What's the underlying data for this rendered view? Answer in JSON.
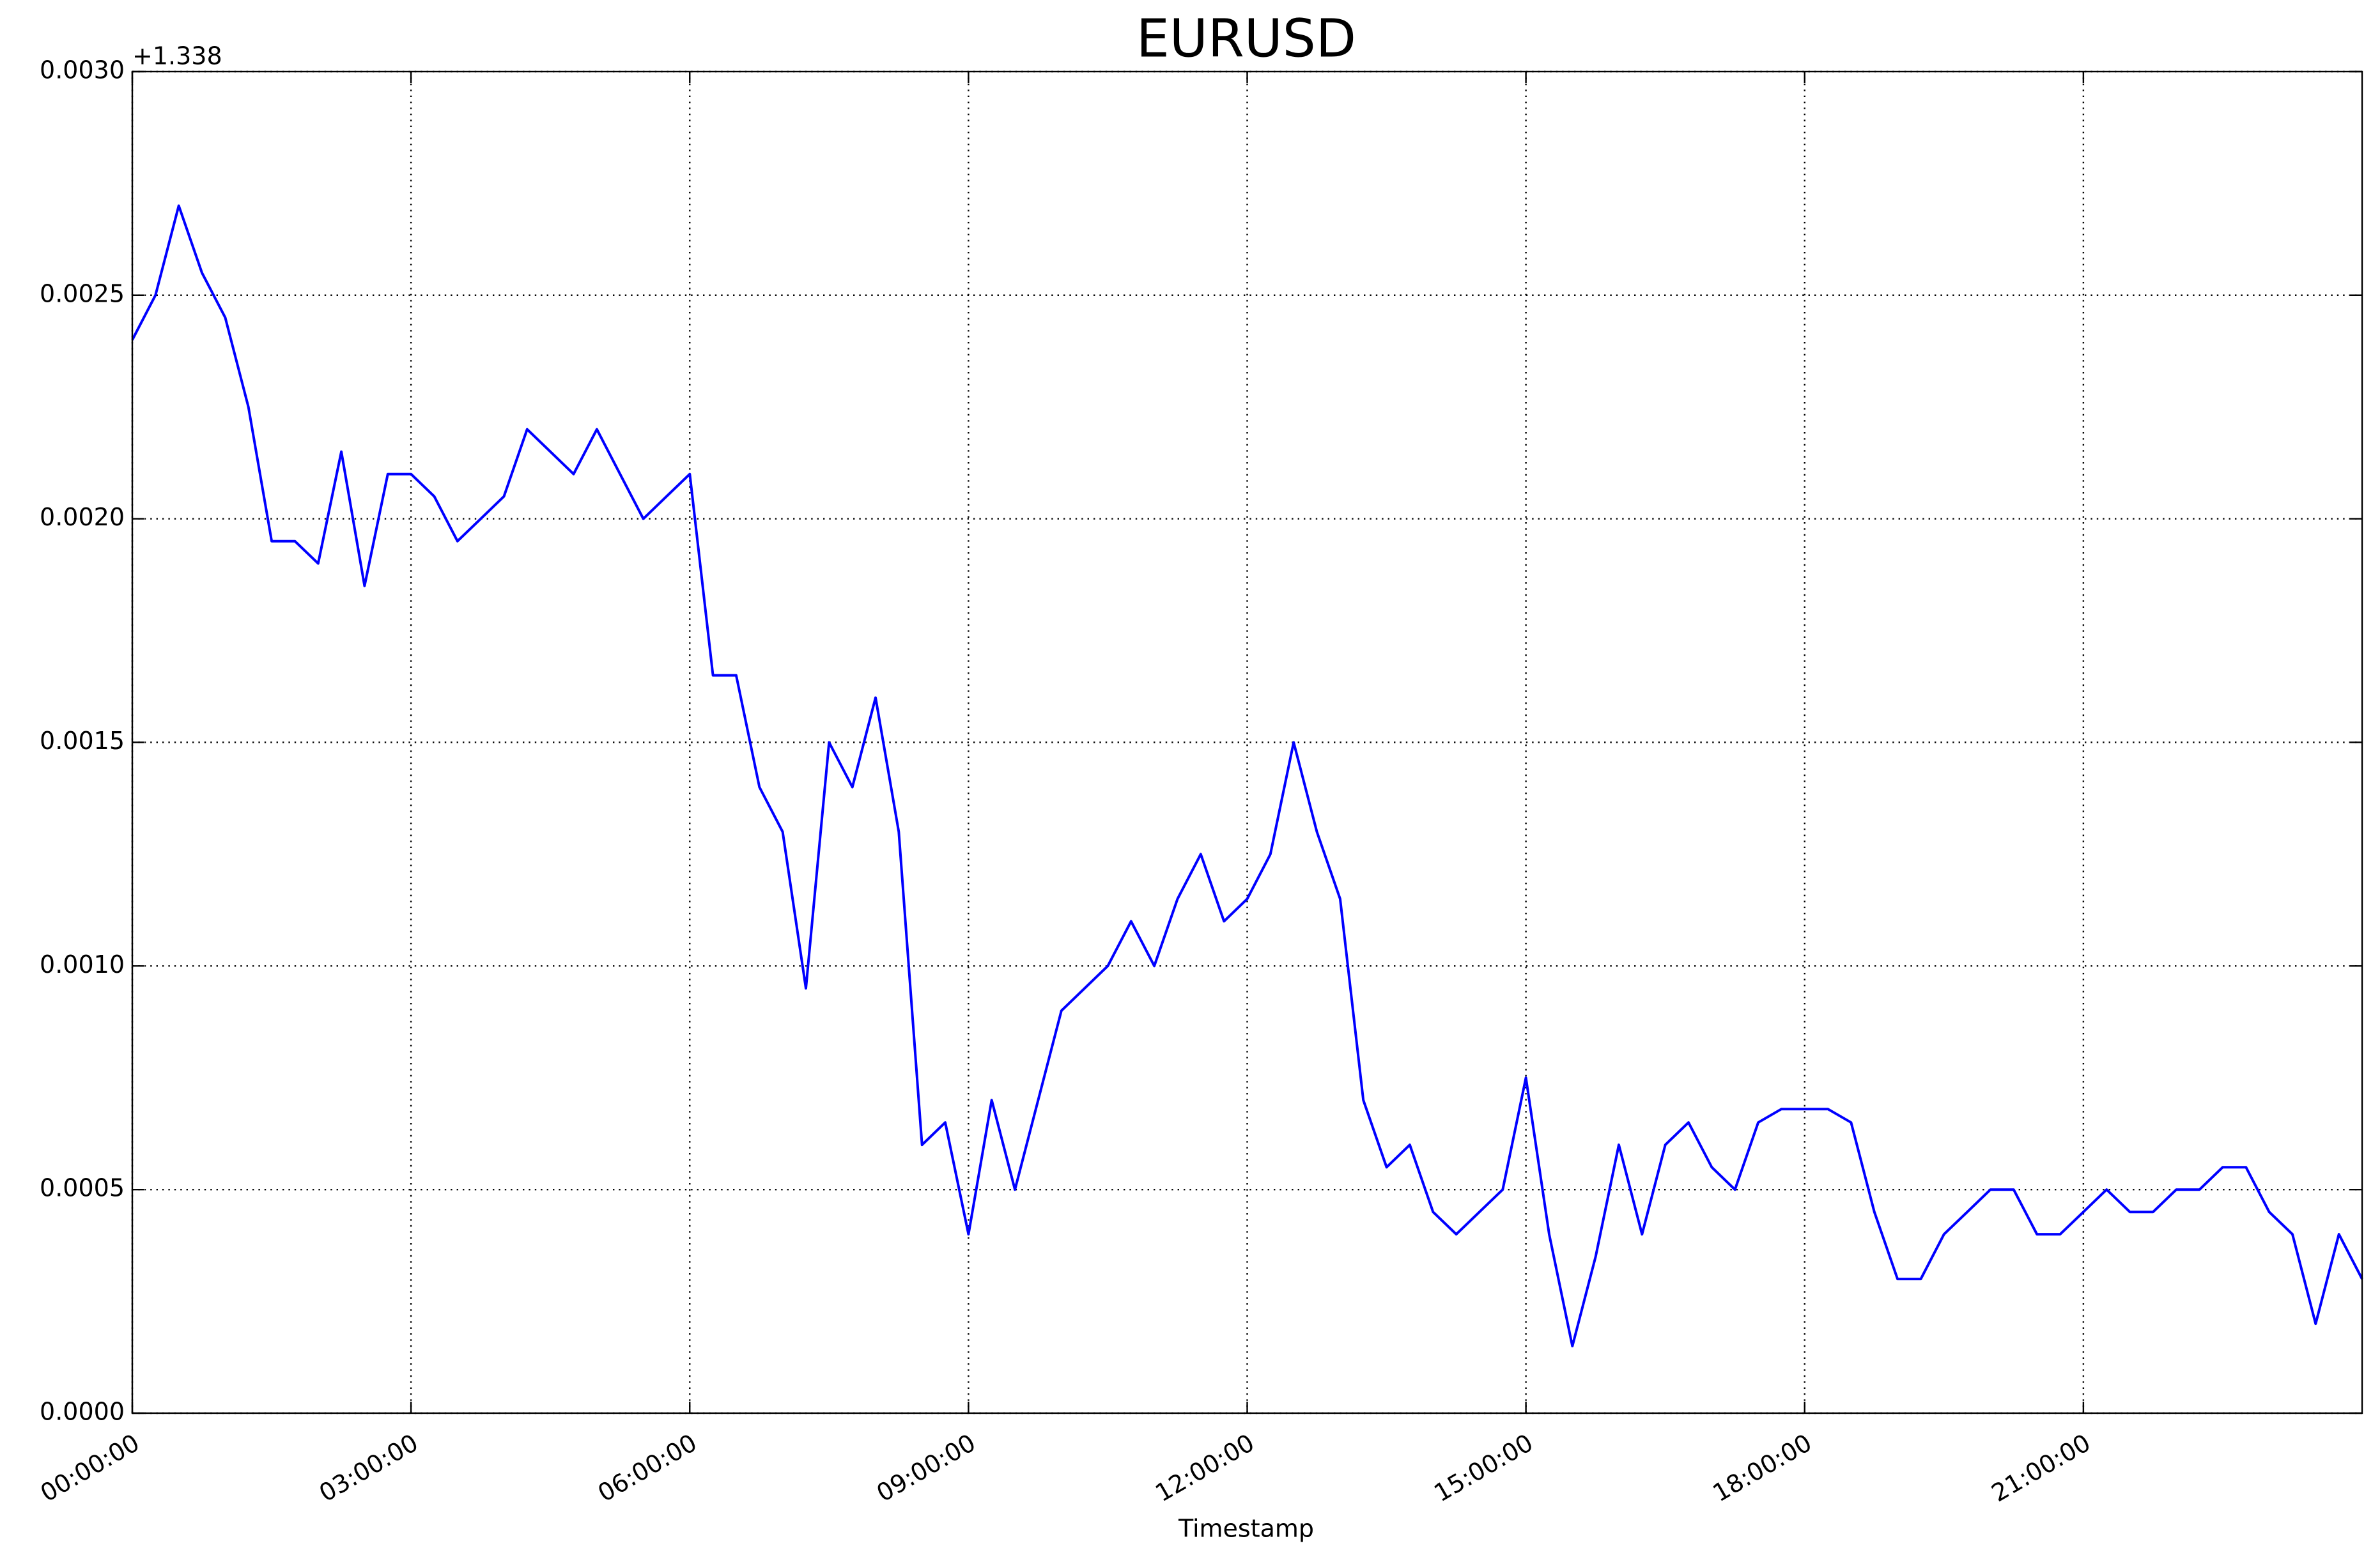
{
  "chart_data": {
    "type": "line",
    "title": "EURUSD",
    "xlabel": "Timestamp",
    "y_offset": "+1.338",
    "color": "#0000ff",
    "grid": true,
    "x": [
      0,
      0.25,
      0.5,
      0.75,
      1,
      1.25,
      1.5,
      1.75,
      2,
      2.25,
      2.5,
      2.75,
      3,
      3.25,
      3.5,
      3.75,
      4,
      4.25,
      4.5,
      4.75,
      5,
      5.25,
      5.5,
      5.75,
      6,
      6.25,
      6.5,
      6.75,
      7,
      7.25,
      7.5,
      7.75,
      8,
      8.25,
      8.5,
      8.75,
      9,
      9.25,
      9.5,
      9.75,
      10,
      10.25,
      10.5,
      10.75,
      11,
      11.25,
      11.5,
      11.75,
      12,
      12.25,
      12.5,
      12.75,
      13,
      13.25,
      13.5,
      13.75,
      14,
      14.25,
      14.5,
      14.75,
      15,
      15.25,
      15.5,
      15.75,
      16,
      16.25,
      16.5,
      16.75,
      17,
      17.25,
      17.5,
      17.75,
      18,
      18.25,
      18.5,
      18.75,
      19,
      19.25,
      19.5,
      19.75,
      20,
      20.25,
      20.5,
      20.75,
      21,
      21.25,
      21.5,
      21.75,
      22,
      22.25,
      22.5,
      22.75,
      23,
      23.25,
      23.5,
      23.75,
      24
    ],
    "values": [
      0.0024,
      0.0025,
      0.0027,
      0.00255,
      0.00245,
      0.00225,
      0.00195,
      0.00195,
      0.0019,
      0.00215,
      0.00185,
      0.0021,
      0.0021,
      0.00205,
      0.00195,
      0.002,
      0.00205,
      0.0022,
      0.00215,
      0.0021,
      0.0022,
      0.0021,
      0.002,
      0.00205,
      0.0021,
      0.00165,
      0.00165,
      0.0014,
      0.0013,
      0.00095,
      0.0015,
      0.0014,
      0.0016,
      0.0013,
      0.0006,
      0.00065,
      0.0004,
      0.0007,
      0.0005,
      0.0007,
      0.0009,
      0.00095,
      0.001,
      0.0011,
      0.001,
      0.00115,
      0.00125,
      0.0011,
      0.00115,
      0.00125,
      0.0015,
      0.0013,
      0.00115,
      0.0007,
      0.00055,
      0.0006,
      0.00045,
      0.0004,
      0.00045,
      0.0005,
      0.00075,
      0.0004,
      0.00015,
      0.00035,
      0.0006,
      0.0004,
      0.0006,
      0.00065,
      0.00055,
      0.0005,
      0.00065,
      0.00068,
      0.00068,
      0.00068,
      0.00065,
      0.00045,
      0.0003,
      0.0003,
      0.0004,
      0.00045,
      0.0005,
      0.0005,
      0.0004,
      0.0004,
      0.00045,
      0.0005,
      0.00045,
      0.00045,
      0.0005,
      0.0005,
      0.00055,
      0.00055,
      0.00045,
      0.0004,
      0.0002,
      0.0004,
      0.0003
    ],
    "xlim": [
      0,
      24
    ],
    "xticks": [
      {
        "value": 0,
        "label": "00:00:00"
      },
      {
        "value": 3,
        "label": "03:00:00"
      },
      {
        "value": 6,
        "label": "06:00:00"
      },
      {
        "value": 9,
        "label": "09:00:00"
      },
      {
        "value": 12,
        "label": "12:00:00"
      },
      {
        "value": 15,
        "label": "15:00:00"
      },
      {
        "value": 18,
        "label": "18:00:00"
      },
      {
        "value": 21,
        "label": "21:00:00"
      }
    ],
    "ylim": [
      0,
      0.003
    ],
    "yticks": [
      {
        "value": 0,
        "label": "0.0000"
      },
      {
        "value": 0.0005,
        "label": "0.0005"
      },
      {
        "value": 0.001,
        "label": "0.0010"
      },
      {
        "value": 0.0015,
        "label": "0.0015"
      },
      {
        "value": 0.002,
        "label": "0.0020"
      },
      {
        "value": 0.0025,
        "label": "0.0025"
      },
      {
        "value": 0.003,
        "label": "0.0030"
      }
    ]
  }
}
